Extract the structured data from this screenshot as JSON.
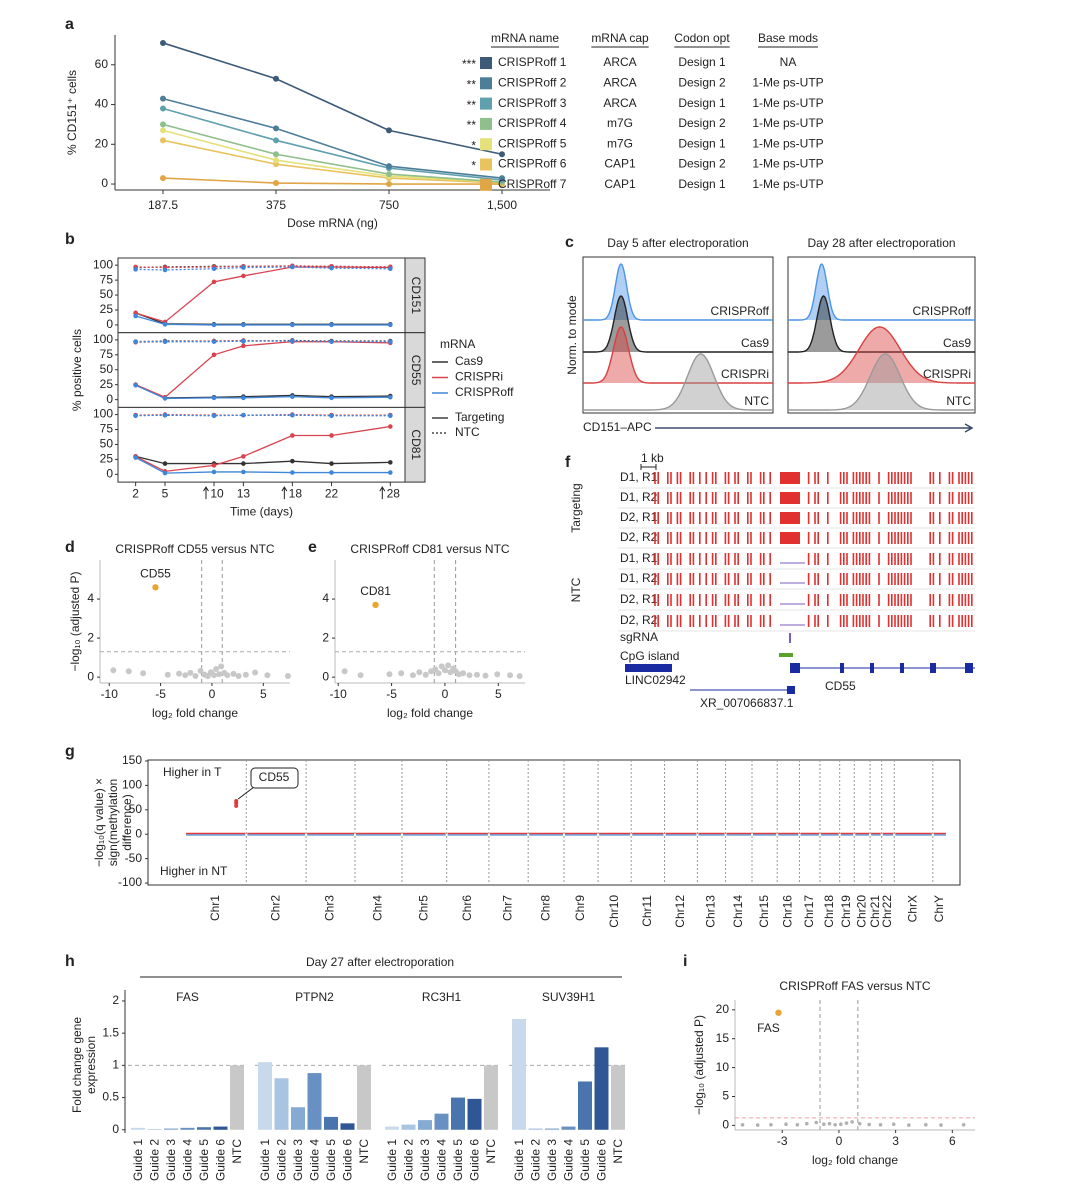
{
  "chart_data": [
    {
      "type": "line",
      "panel": "a",
      "categories": [
        "187.5",
        "375",
        "750",
        "1,500"
      ],
      "x_label": "Dose mRNA (ng)",
      "y_label": "% CD151⁺ cells",
      "ylim": [
        -3,
        75
      ],
      "yticks": [
        0,
        20,
        40,
        60
      ],
      "series": [
        {
          "name": "CRISPRoff 1",
          "color": "#3d5a78",
          "values": [
            71,
            53,
            27,
            15
          ]
        },
        {
          "name": "CRISPRoff 2",
          "color": "#4d7e99",
          "values": [
            43,
            28,
            9,
            3
          ]
        },
        {
          "name": "CRISPRoff 3",
          "color": "#5f9fae",
          "values": [
            38,
            22,
            8,
            2
          ]
        },
        {
          "name": "CRISPRoff 4",
          "color": "#8fbf8a",
          "values": [
            30,
            15,
            5,
            1
          ]
        },
        {
          "name": "CRISPRoff 5",
          "color": "#e4e07a",
          "values": [
            27,
            12,
            4,
            1
          ]
        },
        {
          "name": "CRISPRoff 6",
          "color": "#e8c35e",
          "values": [
            22,
            10,
            3,
            0.5
          ]
        },
        {
          "name": "CRISPRoff 7",
          "color": "#e0a545",
          "values": [
            3,
            0.5,
            0,
            0
          ]
        }
      ],
      "table": {
        "header": [
          "mRNA name",
          "mRNA cap",
          "Codon opt",
          "Base mods"
        ],
        "significance": [
          "***",
          "**",
          "**",
          "**",
          "*",
          "*",
          null
        ],
        "rows": [
          [
            "ARCA",
            "Design 1",
            "NA"
          ],
          [
            "ARCA",
            "Design 2",
            "1-Me ps-UTP"
          ],
          [
            "ARCA",
            "Design 1",
            "1-Me ps-UTP"
          ],
          [
            "m7G",
            "Design 2",
            "1-Me ps-UTP"
          ],
          [
            "m7G",
            "Design 1",
            "1-Me ps-UTP"
          ],
          [
            "CAP1",
            "Design 2",
            "1-Me ps-UTP"
          ],
          [
            "CAP1",
            "Design 1",
            "1-Me ps-UTP"
          ]
        ]
      }
    },
    {
      "type": "facet-line",
      "panel": "b",
      "x": [
        2,
        5,
        10,
        13,
        18,
        22,
        28
      ],
      "xlim": [
        0.2,
        29.5
      ],
      "xticks": [
        2,
        5,
        10,
        13,
        18,
        22,
        28
      ],
      "arrow_days": [
        10,
        18,
        28
      ],
      "ylim": [
        -13,
        112
      ],
      "yticks": [
        0,
        25,
        50,
        75,
        100
      ],
      "x_label": "Time (days)",
      "y_label": "% positive cells",
      "color_legend": {
        "title": "mRNA",
        "entries": [
          {
            "name": "Cas9",
            "color": "#333333"
          },
          {
            "name": "CRISPRi",
            "color": "#d9434f"
          },
          {
            "name": "CRISPRoff",
            "color": "#3f86d8"
          }
        ]
      },
      "line_legend": {
        "entries": [
          {
            "name": "Targeting",
            "dash": "solid"
          },
          {
            "name": "NTC",
            "dash": "dotted"
          }
        ]
      },
      "facets": [
        {
          "name": "CD151",
          "series": [
            {
              "mrna": "Cas9",
              "guide": "Targeting",
              "values": [
                20,
                2,
                1,
                1,
                1,
                1,
                1
              ]
            },
            {
              "mrna": "CRISPRi",
              "guide": "Targeting",
              "values": [
                20,
                5,
                72,
                82,
                97,
                97,
                96
              ]
            },
            {
              "mrna": "CRISPRoff",
              "guide": "Targeting",
              "values": [
                15,
                1,
                0,
                0,
                0,
                0,
                0
              ]
            },
            {
              "mrna": "Cas9",
              "guide": "NTC",
              "values": [
                96,
                97,
                98,
                98,
                98,
                98,
                97
              ]
            },
            {
              "mrna": "CRISPRi",
              "guide": "NTC",
              "values": [
                97,
                96,
                97,
                98,
                99,
                98,
                97
              ]
            },
            {
              "mrna": "CRISPRoff",
              "guide": "NTC",
              "values": [
                93,
                92,
                94,
                96,
                97,
                95,
                94
              ]
            }
          ]
        },
        {
          "name": "CD55",
          "series": [
            {
              "mrna": "Cas9",
              "guide": "Targeting",
              "values": [
                25,
                3,
                4,
                5,
                7,
                5,
                6
              ]
            },
            {
              "mrna": "CRISPRi",
              "guide": "Targeting",
              "values": [
                25,
                4,
                75,
                90,
                97,
                97,
                95
              ]
            },
            {
              "mrna": "CRISPRoff",
              "guide": "Targeting",
              "values": [
                24,
                2,
                3,
                3,
                5,
                3,
                4
              ]
            },
            {
              "mrna": "Cas9",
              "guide": "NTC",
              "values": [
                97,
                98,
                98,
                98,
                99,
                98,
                98
              ]
            },
            {
              "mrna": "CRISPRi",
              "guide": "NTC",
              "values": [
                96,
                97,
                98,
                99,
                98,
                97,
                97
              ]
            },
            {
              "mrna": "CRISPRoff",
              "guide": "NTC",
              "values": [
                97,
                97,
                97,
                98,
                98,
                97,
                97
              ]
            }
          ]
        },
        {
          "name": "CD81",
          "series": [
            {
              "mrna": "Cas9",
              "guide": "Targeting",
              "values": [
                30,
                18,
                18,
                18,
                22,
                18,
                20
              ]
            },
            {
              "mrna": "CRISPRi",
              "guide": "Targeting",
              "values": [
                30,
                5,
                15,
                30,
                65,
                65,
                80
              ]
            },
            {
              "mrna": "CRISPRoff",
              "guide": "Targeting",
              "values": [
                28,
                2,
                4,
                4,
                3,
                3,
                3
              ]
            },
            {
              "mrna": "Cas9",
              "guide": "NTC",
              "values": [
                99,
                99,
                99,
                99,
                99,
                99,
                99
              ]
            },
            {
              "mrna": "CRISPRi",
              "guide": "NTC",
              "values": [
                99,
                100,
                99,
                99,
                100,
                99,
                99
              ]
            },
            {
              "mrna": "CRISPRoff",
              "guide": "NTC",
              "values": [
                98,
                99,
                98,
                99,
                99,
                98,
                98
              ]
            }
          ]
        }
      ]
    },
    {
      "type": "ridge",
      "panel": "c",
      "x_label": "CD151–APC",
      "y_label": "Norm. to mode",
      "xlim": [
        0,
        100
      ],
      "panels": [
        {
          "title": "Day 5 after electroporation",
          "series": [
            {
              "name": "CRISPRoff",
              "color": "#4d94e6",
              "center": 20,
              "spread": 3
            },
            {
              "name": "Cas9",
              "color": "#222222",
              "center": 20,
              "spread": 3.5
            },
            {
              "name": "CRISPRi",
              "color": "#d94040",
              "center": 20,
              "spread": 4
            },
            {
              "name": "NTC",
              "color": "#9a9a9a",
              "center": 62,
              "spread": 7
            }
          ]
        },
        {
          "title": "Day 28 after electroporation",
          "series": [
            {
              "name": "CRISPRoff",
              "color": "#4d94e6",
              "center": 18,
              "spread": 3
            },
            {
              "name": "Cas9",
              "color": "#222222",
              "center": 19,
              "spread": 3.5
            },
            {
              "name": "CRISPRi",
              "color": "#d94040",
              "center": 49,
              "spread": 11
            },
            {
              "name": "NTC",
              "color": "#9a9a9a",
              "center": 52,
              "spread": 8
            }
          ]
        }
      ]
    },
    {
      "type": "volcano",
      "panel": "d",
      "title": "CRISPRoff CD55 versus NTC",
      "x_label": "log₂ fold change",
      "y_label": "−log₁₀ (adjusted P)",
      "xlim": [
        -10.9,
        7.6
      ],
      "xticks": [
        -10,
        -5,
        0,
        5
      ],
      "ylim": [
        -0.3,
        6
      ],
      "yticks": [
        0,
        2,
        4
      ],
      "fc_threshold": [
        -1,
        1
      ],
      "p_threshold": 1.3,
      "threshold_color": "#aaaaaa",
      "point_color": "#c8c8c8",
      "x": [
        -9.6,
        -8.1,
        -6.7,
        -4.3,
        -3.2,
        -2.6,
        -2.1,
        -1.6,
        -1.1,
        -0.7,
        -0.4,
        -0.1,
        0.2,
        0.4,
        0.7,
        0.9,
        1.2,
        1.5,
        2.1,
        2.6,
        3.3,
        4.2,
        5.4,
        7.4
      ],
      "y": [
        0.35,
        0.3,
        0.2,
        0.12,
        0.18,
        0.1,
        0.22,
        0.06,
        0.32,
        0.12,
        0.05,
        0.25,
        0.1,
        0.42,
        0.15,
        0.55,
        0.22,
        0.1,
        0.17,
        0.06,
        0.12,
        0.24,
        0.1,
        0.06
      ],
      "highlight": {
        "name": "CD55",
        "x": -5.5,
        "y": 4.6,
        "color": "#e8a533"
      }
    },
    {
      "type": "volcano",
      "panel": "e",
      "title": "CRISPRoff CD81 versus NTC",
      "x_label": "log₂ fold change",
      "xlim": [
        -10.3,
        7.5
      ],
      "xticks": [
        -10,
        -5,
        0,
        5
      ],
      "ylim": [
        -0.3,
        6
      ],
      "yticks": [
        0,
        2,
        4
      ],
      "fc_threshold": [
        -1,
        1
      ],
      "p_threshold": 1.3,
      "threshold_color": "#aaaaaa",
      "point_color": "#c8c8c8",
      "x": [
        -9.4,
        -7.9,
        -5.2,
        -4.1,
        -3.0,
        -2.4,
        -1.8,
        -1.3,
        -0.9,
        -0.6,
        -0.3,
        0,
        0.3,
        0.5,
        0.8,
        1.0,
        1.3,
        1.7,
        2.3,
        3.0,
        3.8,
        4.9,
        6.1,
        7.0
      ],
      "y": [
        0.3,
        0.1,
        0.15,
        0.2,
        0.1,
        0.25,
        0.12,
        0.3,
        0.4,
        0.2,
        0.55,
        0.35,
        0.6,
        0.25,
        0.45,
        0.3,
        0.15,
        0.2,
        0.1,
        0.12,
        0.08,
        0.15,
        0.1,
        0.05
      ],
      "highlight": {
        "name": "CD81",
        "x": -6.5,
        "y": 3.7,
        "color": "#e8a533"
      }
    },
    {
      "type": "tracks",
      "panel": "f",
      "scale_label": "1 kb",
      "color": "#e03030",
      "groups": [
        {
          "name": "Targeting",
          "rows": [
            "D1, R1",
            "D1, R2",
            "D2, R1",
            "D2, R2"
          ]
        },
        {
          "name": "NTC",
          "rows": [
            "D1, R1",
            "D1, R2",
            "D2, R1",
            "D2, R2"
          ]
        }
      ],
      "annotation_tracks": [
        "sgRNA",
        "CpG island"
      ],
      "genes": [
        "LINC02942",
        "CD55",
        "XR_007066837.1"
      ]
    },
    {
      "type": "manhattan",
      "panel": "g",
      "y_label": [
        "−log₁₀(q value) ×",
        "sign(methylation",
        "difference)"
      ],
      "xlim": [
        -150,
        3137
      ],
      "ylim": [
        -104,
        152
      ],
      "yticks": [
        -100,
        -50,
        0,
        50,
        100,
        150
      ],
      "chromosomes": [
        "Chr1",
        "Chr2",
        "Chr3",
        "Chr4",
        "Chr5",
        "Chr6",
        "Chr7",
        "Chr8",
        "Chr9",
        "Chr10",
        "Chr11",
        "Chr12",
        "Chr13",
        "Chr14",
        "Chr15",
        "Chr16",
        "Chr17",
        "Chr18",
        "Chr19",
        "Chr20",
        "Chr21",
        "Chr22",
        "ChrX",
        "ChrY"
      ],
      "chromosome_sizes": [
        248,
        242,
        198,
        190,
        181,
        171,
        159,
        145,
        138,
        134,
        135,
        133,
        114,
        107,
        102,
        90,
        83,
        80,
        59,
        64,
        47,
        51,
        156,
        57
      ],
      "up_label": "Higher in T",
      "down_label": "Higher in NT",
      "up_color": "#e03a3a",
      "down_color": "#3d7cc9",
      "highlight": {
        "name": "CD55",
        "x": 207,
        "values": [
          58,
          64,
          68
        ]
      }
    },
    {
      "type": "grouped-bar",
      "panel": "h",
      "title": "Day 27 after electroporation",
      "y_label": [
        "Fold change gene",
        "expression"
      ],
      "ylim": [
        -0.05,
        2.17
      ],
      "yticks": [
        0,
        0.5,
        1,
        1.5,
        2
      ],
      "reference_line": 1,
      "categories": [
        "Guide 1",
        "Guide 2",
        "Guide 3",
        "Guide 4",
        "Guide 5",
        "Guide 6",
        "NTC"
      ],
      "colors": [
        "#c9d9ec",
        "#a9c4e0",
        "#86abd2",
        "#6890c2",
        "#4a74ae",
        "#2f5695",
        "#c8c8c8"
      ],
      "groups": [
        {
          "name": "FAS",
          "values": [
            0.03,
            0.01,
            0.02,
            0.03,
            0.04,
            0.05,
            1
          ]
        },
        {
          "name": "PTPN2",
          "values": [
            1.05,
            0.8,
            0.35,
            0.88,
            0.2,
            0.1,
            1
          ]
        },
        {
          "name": "RC3H1",
          "values": [
            0.05,
            0.08,
            0.15,
            0.25,
            0.5,
            0.48,
            1
          ]
        },
        {
          "name": "SUV39H1",
          "values": [
            1.72,
            0.02,
            0.02,
            0.05,
            0.75,
            1.28,
            1
          ]
        }
      ]
    },
    {
      "type": "volcano",
      "panel": "i",
      "title": "CRISPRoff FAS versus NTC",
      "x_label": "log₂ fold change",
      "y_label": "−log₁₀ (adjusted P)",
      "xlim": [
        -5.5,
        7.2
      ],
      "xticks": [
        -3,
        0,
        3,
        6
      ],
      "ylim": [
        -0.8,
        21.7
      ],
      "yticks": [
        0,
        5,
        10,
        15,
        20
      ],
      "fc_threshold": [
        -1,
        1
      ],
      "p_threshold": 1.3,
      "threshold_color": "#f0a0a0",
      "point_color": "#b0b0b0",
      "x": [
        -5.1,
        -4.3,
        -3.6,
        -2.8,
        -2.2,
        -1.7,
        -1.2,
        -0.8,
        -0.5,
        -0.2,
        0.1,
        0.4,
        0.7,
        1.1,
        1.6,
        2.2,
        2.9,
        3.7,
        4.6,
        5.4,
        6.6
      ],
      "y": [
        0.1,
        0.05,
        0.1,
        0.2,
        0.1,
        0.3,
        0.5,
        0.2,
        0.3,
        0.1,
        0.2,
        0.4,
        0.6,
        0.3,
        0.15,
        0.1,
        0.2,
        0.05,
        0.1,
        0.05,
        0.1
      ],
      "highlight": {
        "name": "FAS",
        "x": -3.2,
        "y": 19.5,
        "color": "#e8a533"
      }
    }
  ]
}
